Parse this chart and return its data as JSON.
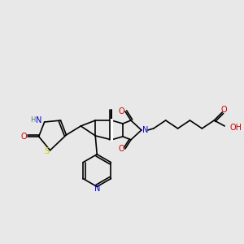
{
  "bg_color": "#e8e8e8",
  "bond_width": 1.2,
  "atom_colors": {
    "N": "#0000cc",
    "O": "#cc0000",
    "S": "#cccc00",
    "C": "#000000",
    "H": "#4a7a7a"
  },
  "font_size": 7
}
